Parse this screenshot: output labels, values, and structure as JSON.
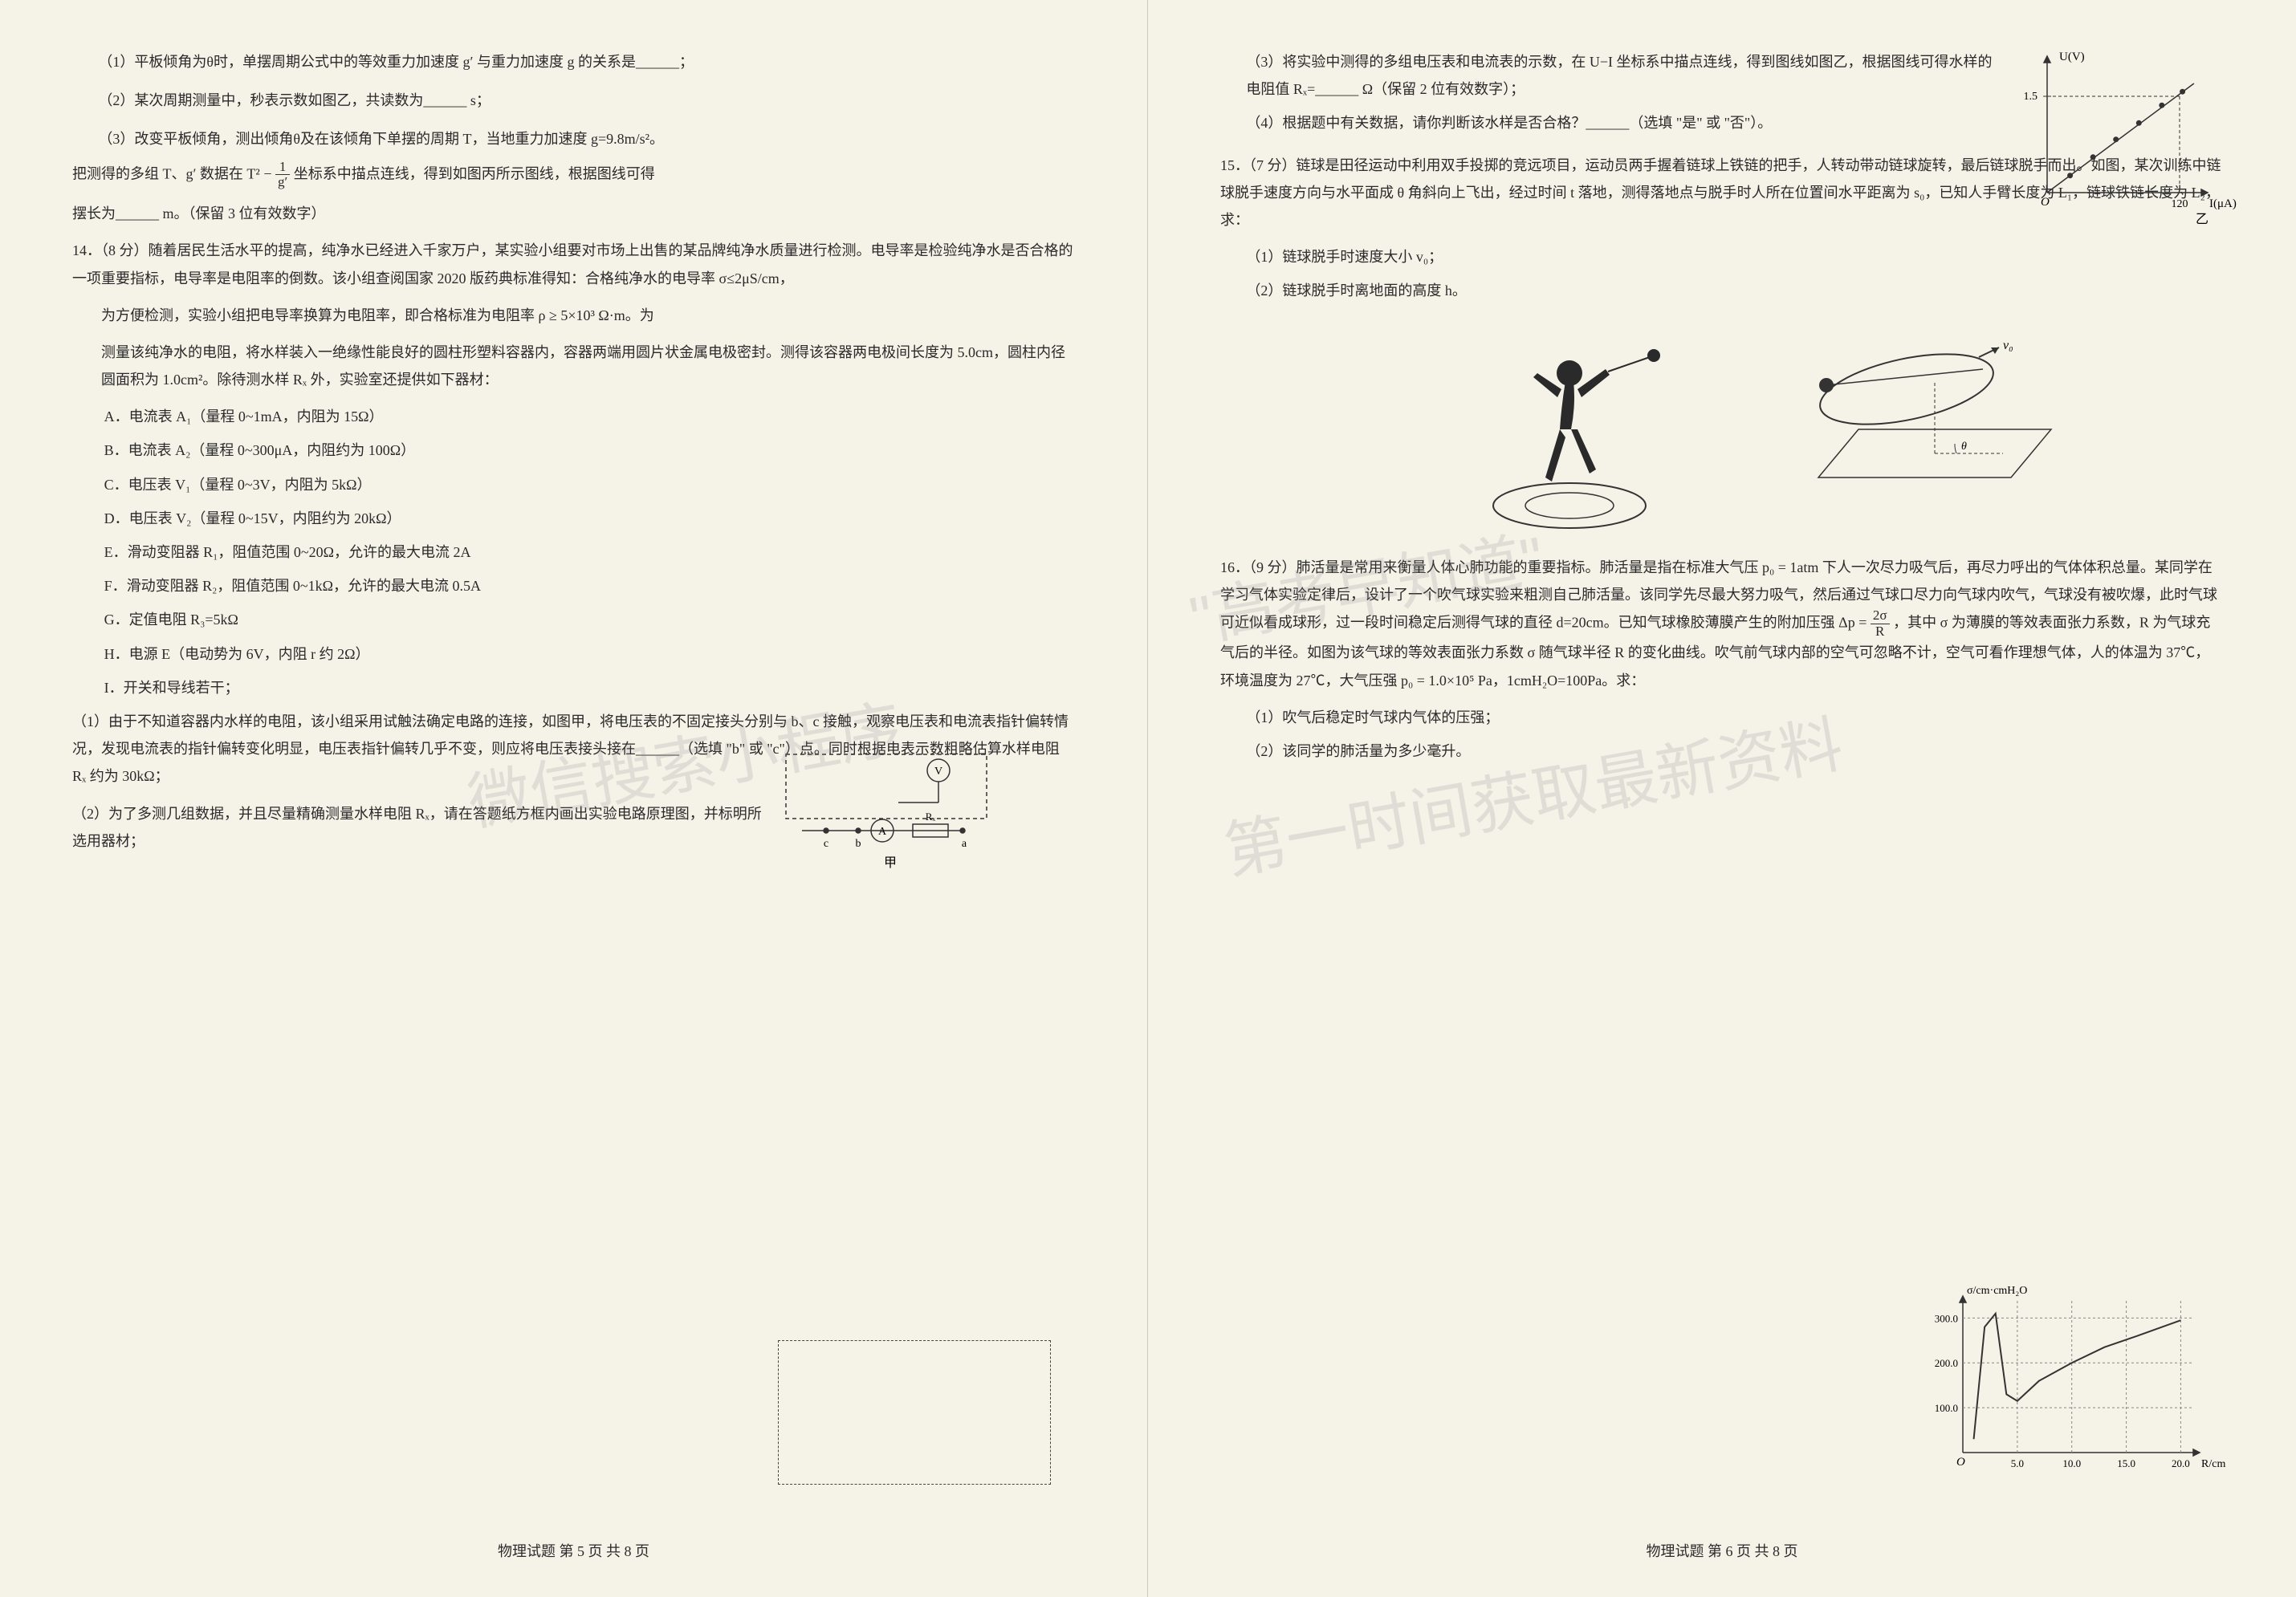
{
  "left_page": {
    "q13_subs": [
      "（1）平板倾角为θ时，单摆周期公式中的等效重力加速度 g′ 与重力加速度 g 的关系是______；",
      "（2）某次周期测量中，秒表示数如图乙，共读数为______ s；",
      "（3）改变平板倾角，测出倾角θ及在该倾角下单摆的周期 T，当地重力加速度 g=9.8m/s²。"
    ],
    "q13_tail1": "把测得的多组 T、g′ 数据在 T² − ",
    "q13_tail2": " 坐标系中描点连线，得到如图丙所示图线，根据图线可得",
    "q13_tail3": "摆长为______ m。（保留 3 位有效数字）",
    "q14_intro": "14．（8 分）随着居民生活水平的提高，纯净水已经进入千家万户，某实验小组要对市场上出售的某品牌纯净水质量进行检测。电导率是检验纯净水是否合格的一项重要指标，电导率是电阻率的倒数。该小组查阅国家 2020 版药典标准得知：合格纯净水的电导率 σ≤2μS/cm，",
    "q14_intro2": "为方便检测，实验小组把电导率换算为电阻率，即合格标准为电阻率 ρ ≥ 5×10³ Ω·m。为",
    "q14_intro3": "测量该纯净水的电阻，将水样装入一绝缘性能良好的圆柱形塑料容器内，容器两端用圆片状金属电极密封。测得该容器两电极间长度为 5.0cm，圆柱内径圆面积为 1.0cm²。除待测水样 Rₓ 外，实验室还提供如下器材：",
    "q14_items": [
      "A．电流表 A₁（量程 0~1mA，内阻为 15Ω）",
      "B．电流表 A₂（量程 0~300μA，内阻约为 100Ω）",
      "C．电压表 V₁（量程 0~3V，内阻为 5kΩ）",
      "D．电压表 V₂（量程 0~15V，内阻约为 20kΩ）",
      "E．滑动变阻器 R₁，阻值范围 0~20Ω，允许的最大电流 2A",
      "F．滑动变阻器 R₂，阻值范围 0~1kΩ，允许的最大电流 0.5A",
      "G．定值电阻 R₃=5kΩ",
      "H．电源 E（电动势为 6V，内阻 r 约 2Ω）",
      "I．开关和导线若干；"
    ],
    "q14_s1": "（1）由于不知道容器内水样的电阻，该小组采用试触法确定电路的连接，如图甲，将电压表的不固定接头分别与 b、c 接触，观察电压表和电流表指针偏转情况，发现电流表的指针偏转变化明显，电压表指针偏转几乎不变，则应将电压表接头接在______（选填 \"b\" 或 \"c\"）点。同时根据电表示数粗略估算水样电阻 Rₓ 约为 30kΩ；",
    "q14_s2": "（2）为了多测几组数据，并且尽量精确测量水样电阻 Rₓ，请在答题纸方框内画出实验电路原理图，并标明所选用器材；",
    "footer": "物理试题  第 5 页  共 8 页",
    "circuit": {
      "labels": {
        "v": "V",
        "a": "A",
        "rx": "Rₓ",
        "b": "b",
        "c": "c",
        "jia": "甲",
        "nodea": "a"
      },
      "colors": {
        "stroke": "#333",
        "fill": "none"
      }
    }
  },
  "right_page": {
    "q14_s3": "（3）将实验中测得的多组电压表和电流表的示数，在 U−I 坐标系中描点连线，得到图线如图乙，根据图线可得水样的电阻值 Rₓ=______ Ω（保留 2 位有效数字）；",
    "q14_s4": "（4）根据题中有关数据，请你判断该水样是否合格？______（选填 \"是\" 或 \"否\"）。",
    "q15_intro": "15．（7 分）链球是田径运动中利用双手投掷的竞远项目，运动员两手握着链球上铁链的把手，人转动带动链球旋转，最后链球脱手而出。如图，某次训练中链球脱手速度方向与水平面成 θ 角斜向上飞出，经过时间 t 落地，测得落地点与脱手时人所在位置间水平距离为 s₀，已知人手臂长度为 L₁，链球铁链长度为 L₂，求：",
    "q15_s1": "（1）链球脱手时速度大小 v₀；",
    "q15_s2": "（2）链球脱手时离地面的高度 h。",
    "q16_intro": "16．（9 分）肺活量是常用来衡量人体心肺功能的重要指标。肺活量是指在标准大气压 p₀ = 1atm 下人一次尽力吸气后，再尽力呼出的气体体积总量。某同学在学习气体实验定律后，设计了一个吹气球实验来粗测自己肺活量。该同学先尽最大努力吸气，然后通过气球口尽力向气球内吹气，气球没有被吹爆，此时气球可近似看成球形，过一段时间稳定后测得气球的直径 d=20cm。已知气球橡胶薄膜产生的附加压强 Δp = ",
    "q16_intro_tail": "，其中 σ 为薄膜的等效表面张力系数，R 为气球充气后的半径。如图为该气球的等效表面张力系数 σ 随气球半径 R 的变化曲线。吹气前气球内部的空气可忽略不计，空气可看作理想气体，人的体温为 37℃，环境温度为 27℃，大气压强 p₀ = 1.0×10⁵ Pa，1cmH₂O=100Pa。求：",
    "q16_s1": "（1）吹气后稳定时气球内气体的压强；",
    "q16_s2": "（2）该同学的肺活量为多少毫升。",
    "footer": "物理试题  第 6 页  共 8 页",
    "frac_num": "1",
    "frac_den": "g′",
    "frac2_num": "2σ",
    "frac2_den": "R",
    "ui_graph": {
      "axes": {
        "ylabel": "U(V)",
        "xlabel": "I(μA)",
        "ymark": "1.5",
        "xmark": "120",
        "caption": "乙"
      },
      "colors": {
        "axis": "#333",
        "line": "#333",
        "point": "#333"
      },
      "points": [
        [
          20,
          0.25
        ],
        [
          40,
          0.52
        ],
        [
          60,
          0.78
        ],
        [
          80,
          1.02
        ],
        [
          100,
          1.28
        ],
        [
          118,
          1.48
        ]
      ],
      "xlim": [
        0,
        140
      ],
      "ylim": [
        0,
        2
      ]
    },
    "sigma_graph": {
      "ylabel": "σ/cm·cmH₂O",
      "xlabel": "R/cm",
      "yticks": [
        100,
        200,
        300
      ],
      "xticks": [
        5.0,
        10.0,
        15.0,
        20.0
      ],
      "colors": {
        "axis": "#333",
        "grid": "#888",
        "curve": "#333"
      },
      "curve": [
        [
          1,
          30
        ],
        [
          2,
          280
        ],
        [
          3,
          310
        ],
        [
          4,
          130
        ],
        [
          5,
          115
        ],
        [
          7,
          160
        ],
        [
          10,
          200
        ],
        [
          13,
          235
        ],
        [
          16,
          260
        ],
        [
          20,
          295
        ]
      ],
      "xlim": [
        0,
        21
      ],
      "ylim": [
        0,
        340
      ]
    },
    "hammer": {
      "v0_label": "v₀",
      "angle_label": "θ",
      "colors": {
        "stroke": "#333"
      }
    }
  },
  "watermarks": {
    "t1": "微信搜索小程序",
    "t2": "\"高考早知道\"",
    "t3": "第一时间获取最新资料"
  }
}
